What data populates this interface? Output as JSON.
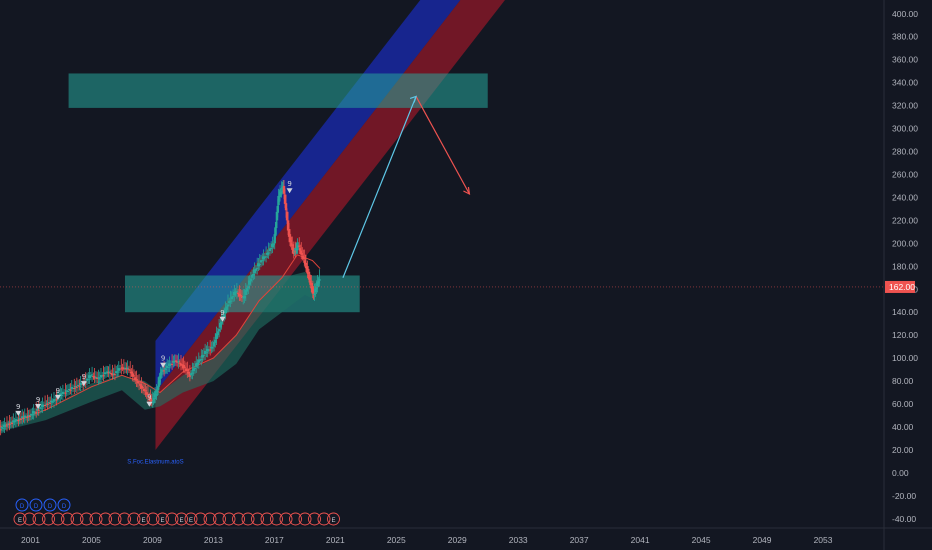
{
  "chart_data": {
    "type": "line",
    "symbol_price_label": "162.00",
    "y_axis": {
      "ticks": [
        "400.00",
        "380.00",
        "360.00",
        "340.00",
        "320.00",
        "300.00",
        "280.00",
        "260.00",
        "240.00",
        "220.00",
        "200.00",
        "180.00",
        "160.00",
        "140.00",
        "120.00",
        "100.00",
        "80.00",
        "60.00",
        "40.00",
        "20.00",
        "0.00",
        "-20.00",
        "-40.00"
      ],
      "tick_values": [
        400,
        380,
        360,
        340,
        320,
        300,
        280,
        260,
        240,
        220,
        200,
        180,
        160,
        140,
        120,
        100,
        80,
        60,
        40,
        20,
        0,
        -20,
        -40
      ],
      "ylim": [
        -48,
        412
      ]
    },
    "x_axis": {
      "ticks": [
        "2001",
        "2005",
        "2009",
        "2013",
        "2017",
        "2021",
        "2025",
        "2029",
        "2033",
        "2037",
        "2041",
        "2045",
        "2049",
        "2053"
      ],
      "tick_values": [
        2001,
        2005,
        2009,
        2013,
        2017,
        2021,
        2025,
        2029,
        2033,
        2037,
        2041,
        2045,
        2049,
        2053
      ],
      "xlim": [
        1999,
        2057
      ]
    },
    "current_price": 162,
    "price_series": {
      "name": "",
      "x": [
        1999,
        1999.5,
        2000,
        2000.5,
        2001,
        2001.5,
        2002,
        2002.5,
        2003,
        2003.5,
        2004,
        2004.5,
        2005,
        2005.5,
        2006,
        2006.5,
        2007,
        2007.5,
        2008,
        2008.5,
        2009,
        2009.3,
        2009.6,
        2010,
        2010.5,
        2011,
        2011.5,
        2012,
        2012.5,
        2013,
        2013.5,
        2014,
        2014.5,
        2015,
        2015.5,
        2016,
        2016.5,
        2017,
        2017.3,
        2017.6,
        2018,
        2018.3,
        2018.6,
        2019,
        2019.3,
        2019.6,
        2020
      ],
      "y": [
        38,
        42,
        45,
        48,
        50,
        55,
        60,
        62,
        68,
        72,
        75,
        78,
        85,
        82,
        88,
        86,
        92,
        90,
        80,
        72,
        62,
        70,
        88,
        92,
        98,
        94,
        85,
        96,
        105,
        110,
        130,
        148,
        158,
        152,
        170,
        182,
        190,
        200,
        240,
        250,
        205,
        192,
        198,
        185,
        170,
        155,
        170
      ]
    },
    "ichimoku_cloud": {
      "x": [
        1999,
        2002,
        2005,
        2007,
        2008.5,
        2009.5,
        2011,
        2013,
        2014.5,
        2016,
        2017.5,
        2019,
        2019.8
      ],
      "upper": [
        42,
        55,
        78,
        85,
        80,
        70,
        85,
        100,
        120,
        150,
        170,
        175,
        165
      ],
      "lower": [
        36,
        46,
        62,
        72,
        55,
        58,
        70,
        80,
        95,
        125,
        140,
        155,
        150
      ]
    },
    "moving_average": {
      "x": [
        1999,
        2002,
        2005,
        2007,
        2008.5,
        2009.5,
        2011,
        2013,
        2014.5,
        2016,
        2017.5,
        2018.5,
        2019.5,
        2020
      ],
      "y": [
        40,
        55,
        75,
        85,
        78,
        70,
        88,
        100,
        120,
        150,
        170,
        190,
        185,
        178
      ]
    },
    "regression_channel": {
      "start": {
        "x": 2009.2,
        "y": 20
      },
      "end": {
        "x": 2056,
        "y": 820
      },
      "upper_offset": 95,
      "mid_offset": 50
    },
    "zones": [
      {
        "x0": 2003.5,
        "x1": 2031.0,
        "y0": 318,
        "y1": 348
      },
      {
        "x0": 2007.2,
        "x1": 2022.6,
        "y0": 140,
        "y1": 172
      }
    ],
    "projection_up": {
      "x": [
        2021.5,
        2026.3
      ],
      "y": [
        170,
        328
      ]
    },
    "projection_down": {
      "x": [
        2026.3,
        2029.8
      ],
      "y": [
        328,
        243
      ]
    },
    "td_markers": [
      {
        "x": 2000.2,
        "y": 54,
        "label": "9"
      },
      {
        "x": 2001.5,
        "y": 60,
        "label": "9"
      },
      {
        "x": 2002.8,
        "y": 68,
        "label": "9"
      },
      {
        "x": 2004.5,
        "y": 80,
        "label": "9"
      },
      {
        "x": 2009.7,
        "y": 96,
        "label": "9"
      },
      {
        "x": 2013.6,
        "y": 136,
        "label": "9"
      },
      {
        "x": 2018.0,
        "y": 248,
        "label": "9"
      },
      {
        "x": 2008.8,
        "y": 62,
        "label": "9"
      }
    ],
    "dividend_markers": [
      "D",
      "D",
      "D",
      "D"
    ],
    "earnings_markers_text": "E",
    "annotation_text": "S.Foc.Elastnum.atoS"
  }
}
